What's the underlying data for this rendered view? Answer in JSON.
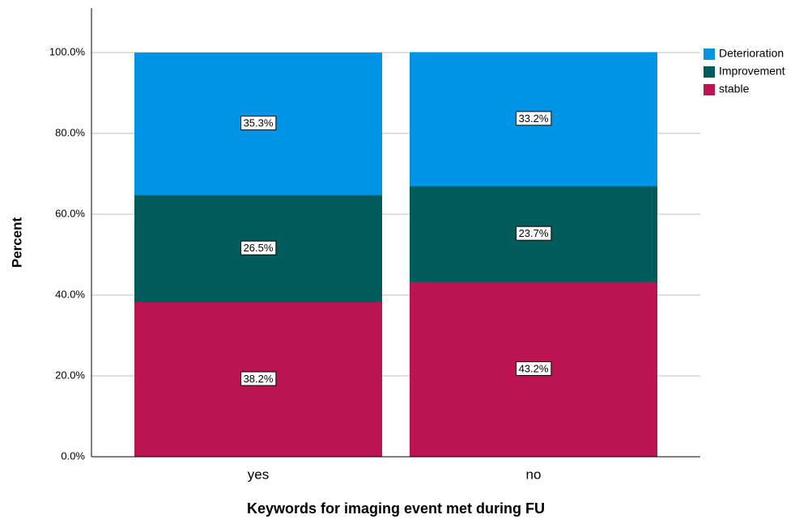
{
  "chart_data": {
    "type": "stacked-bar",
    "x_label": "Keywords for imaging event met during FU",
    "y_label": "Percent",
    "categories": [
      "yes",
      "no"
    ],
    "series": [
      {
        "name": "Deterioration",
        "color": "#0094e6",
        "values": [
          35.3,
          33.2
        ],
        "value_labels": [
          "35.3%",
          "33.2%"
        ]
      },
      {
        "name": "Improvement",
        "color": "#005b5b",
        "values": [
          26.5,
          23.7
        ],
        "value_labels": [
          "26.5%",
          "23.7%"
        ]
      },
      {
        "name": "stable",
        "color": "#bc1453",
        "values": [
          38.2,
          43.2
        ],
        "value_labels": [
          "38.2%",
          "43.2%"
        ]
      }
    ],
    "ylim": [
      0,
      111
    ],
    "yticks": [
      {
        "value": 0,
        "label": "0.0%"
      },
      {
        "value": 20,
        "label": "20.0%"
      },
      {
        "value": 40,
        "label": "40.0%"
      },
      {
        "value": 60,
        "label": "60.0%"
      },
      {
        "value": 80,
        "label": "80.0%"
      },
      {
        "value": 100,
        "label": "100.0%"
      }
    ],
    "grid": true,
    "legend": "right"
  }
}
